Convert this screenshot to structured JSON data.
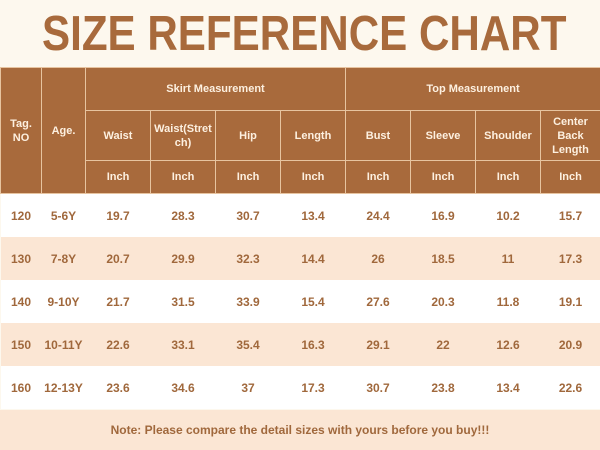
{
  "title": "SIZE REFERENCE CHART",
  "header": {
    "tag": "Tag. NO",
    "age": "Age.",
    "skirt_group": "Skirt Measurement",
    "top_group": "Top Measurement",
    "columns": [
      "Waist",
      "Waist(Stretch)",
      "Hip",
      "Length",
      "Bust",
      "Sleeve",
      "Shoulder",
      "Center Back Length"
    ],
    "unit": "Inch"
  },
  "rows": [
    [
      "120",
      "5-6Y",
      "19.7",
      "28.3",
      "30.7",
      "13.4",
      "24.4",
      "16.9",
      "10.2",
      "15.7"
    ],
    [
      "130",
      "7-8Y",
      "20.7",
      "29.9",
      "32.3",
      "14.4",
      "26",
      "18.5",
      "11",
      "17.3"
    ],
    [
      "140",
      "9-10Y",
      "21.7",
      "31.5",
      "33.9",
      "15.4",
      "27.6",
      "20.3",
      "11.8",
      "19.1"
    ],
    [
      "150",
      "10-11Y",
      "22.6",
      "33.1",
      "35.4",
      "16.3",
      "29.1",
      "22",
      "12.6",
      "20.9"
    ],
    [
      "160",
      "12-13Y",
      "23.6",
      "34.6",
      "37",
      "17.3",
      "30.7",
      "23.8",
      "13.4",
      "22.6"
    ]
  ],
  "note": "Note: Please compare the detail sizes with yours before you buy!!!",
  "colors": {
    "header_bg": "#a86a3c",
    "text": "#a0683c",
    "alt_row": "#fbe6d4",
    "page_bg": "#fdf8ee"
  }
}
